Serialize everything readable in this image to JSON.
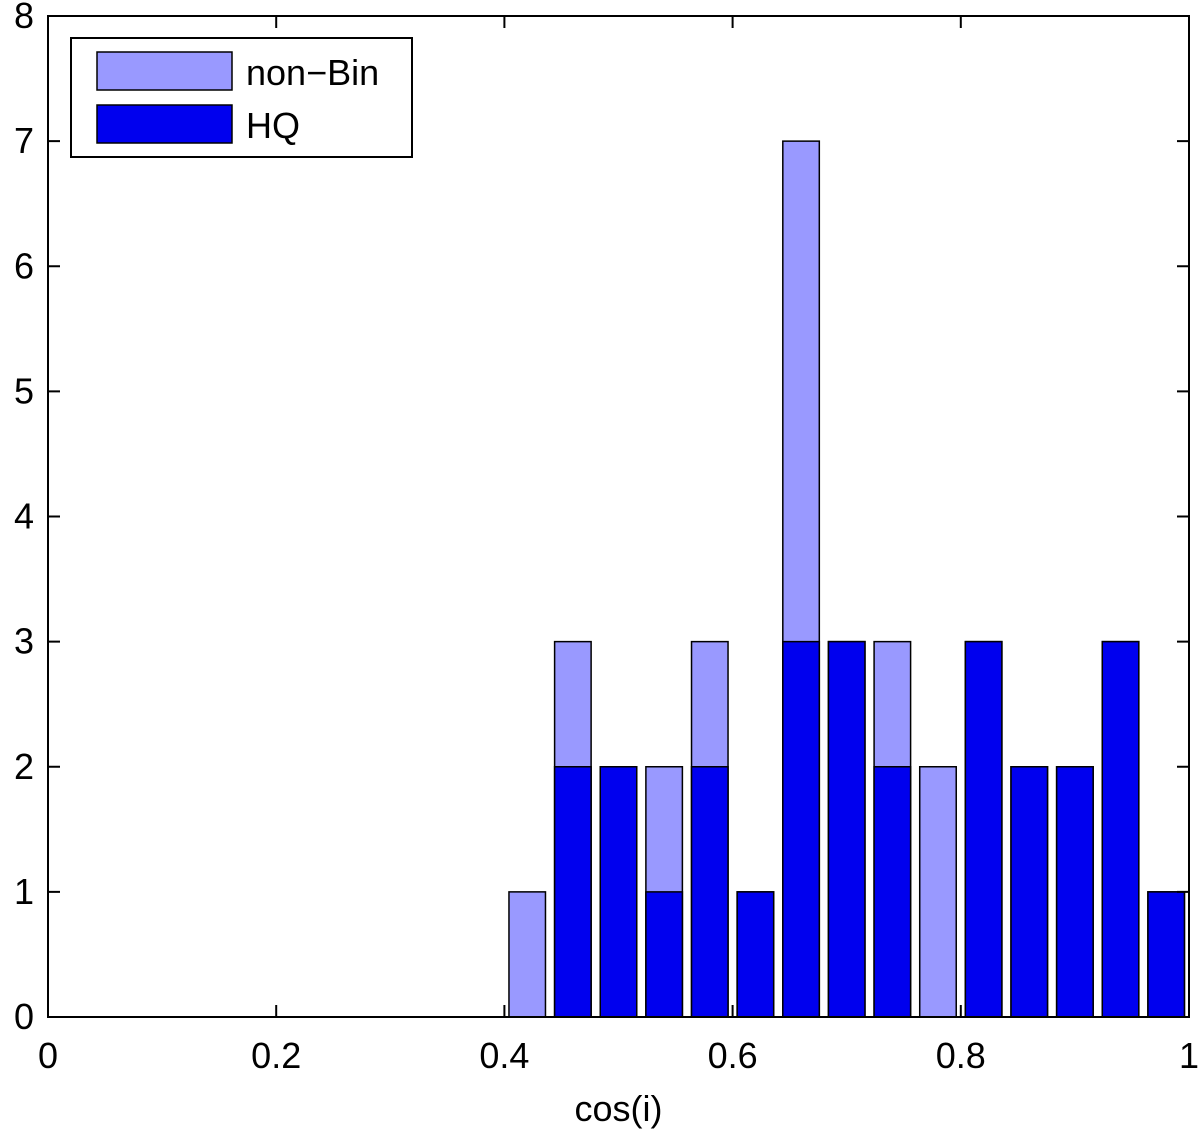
{
  "chart_data": {
    "type": "bar",
    "xlabel": "cos(i)",
    "ylabel": "",
    "title": "",
    "xlim": [
      0,
      1
    ],
    "ylim": [
      0,
      8
    ],
    "xticks": [
      0,
      0.2,
      0.4,
      0.6,
      0.8,
      1
    ],
    "xtick_labels": [
      "0",
      "0.2",
      "0.4",
      "0.6",
      "0.8",
      "1"
    ],
    "yticks": [
      0,
      1,
      2,
      3,
      4,
      5,
      6,
      7,
      8
    ],
    "ytick_labels": [
      "0",
      "1",
      "2",
      "3",
      "4",
      "5",
      "6",
      "7",
      "8"
    ],
    "grid": false,
    "legend_position": "top-left",
    "x": [
      0.42,
      0.46,
      0.5,
      0.54,
      0.58,
      0.62,
      0.66,
      0.7,
      0.74,
      0.78,
      0.82,
      0.86,
      0.9,
      0.94,
      0.98
    ],
    "series": [
      {
        "name": "non−Bin",
        "color": "#9999ff",
        "values": [
          1,
          3,
          2,
          2,
          3,
          1,
          7,
          3,
          3,
          2,
          3,
          2,
          2,
          3,
          1
        ]
      },
      {
        "name": "HQ",
        "color": "#0000ee",
        "values": [
          0,
          2,
          2,
          1,
          2,
          1,
          3,
          3,
          2,
          0,
          3,
          2,
          2,
          3,
          1
        ]
      }
    ]
  }
}
